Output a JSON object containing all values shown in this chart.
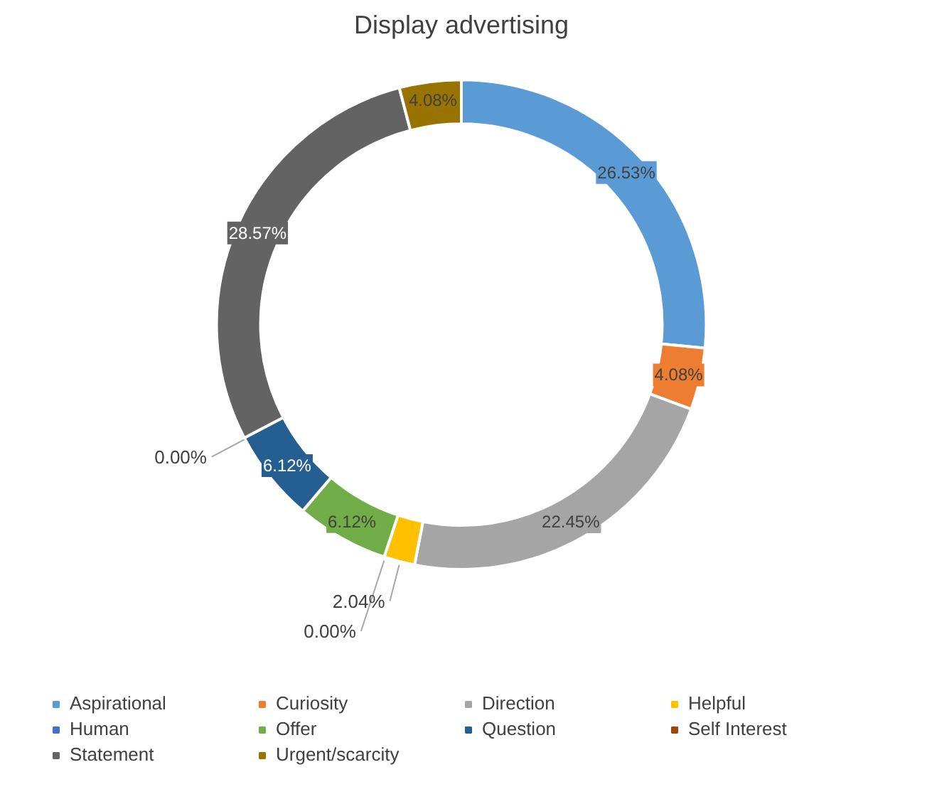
{
  "chart_data": {
    "type": "donut",
    "title": "Display advertising",
    "categories": [
      "Aspirational",
      "Curiosity",
      "Direction",
      "Helpful",
      "Human",
      "Offer",
      "Question",
      "Self Interest",
      "Statement",
      "Urgent/scarcity"
    ],
    "values": [
      26.53,
      4.08,
      22.45,
      2.04,
      0.0,
      6.12,
      6.12,
      0.0,
      28.57,
      4.08
    ],
    "colors": [
      "#5b9bd5",
      "#ed7d31",
      "#a5a5a5",
      "#ffc000",
      "#4472c4",
      "#70ad47",
      "#255e91",
      "#9e480e",
      "#636363",
      "#997300"
    ],
    "value_labels": [
      "26.53%",
      "4.08%",
      "22.45%",
      "2.04%",
      "0.00%",
      "6.12%",
      "6.12%",
      "0.00%",
      "28.57%",
      "4.08%"
    ],
    "legend": "bottom"
  }
}
